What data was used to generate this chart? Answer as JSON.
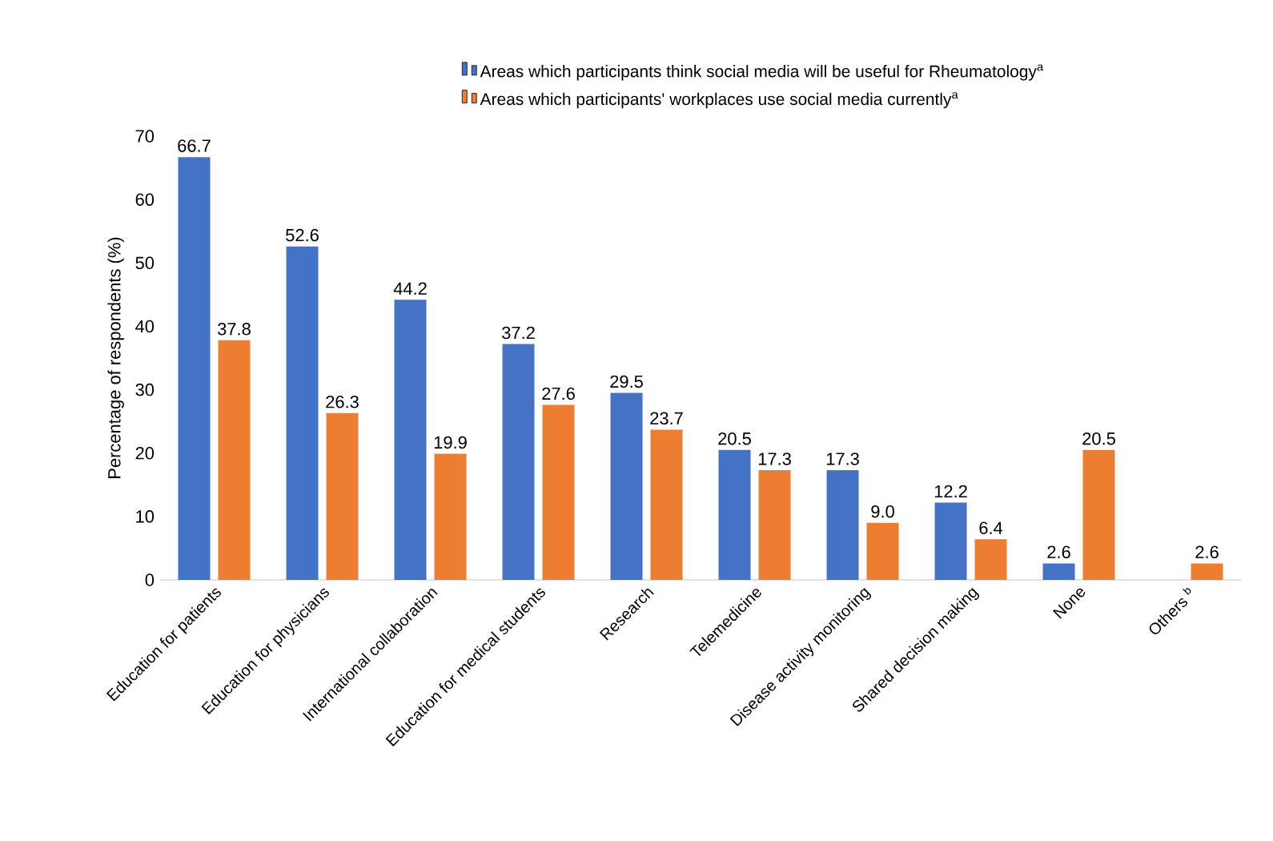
{
  "chart_data": {
    "type": "bar",
    "categories": [
      "Education for patients",
      "Education for physicians",
      "International collaboration",
      "Education for medical students",
      "Research",
      "Telemedicine",
      "Disease activity monitoring",
      "Shared decision making",
      "None",
      "Others $^{b}$"
    ],
    "ylabel": "Percentage of respondents (%)",
    "ylim": [
      0,
      70
    ],
    "yticks": [
      0,
      10,
      20,
      30,
      40,
      50,
      60,
      70
    ],
    "legend": "top",
    "series": [
      {
        "name": "Areas which participants think social media will be useful for Rheumatology$^{a}$",
        "color": "#4472c4",
        "values": [
          66.7,
          52.6,
          44.2,
          37.2,
          29.5,
          20.5,
          17.3,
          12.2,
          2.6,
          null
        ],
        "value_labels": [
          "66.7",
          "52.6",
          "44.2",
          "37.2",
          "29.5",
          "20.5",
          "17.3",
          "12.2",
          "2.6",
          null
        ]
      },
      {
        "name": "Areas which participants' workplaces use social media currently$^{a}$",
        "color": "#ed7d31",
        "values": [
          37.8,
          26.3,
          19.9,
          27.6,
          23.7,
          17.3,
          9.0,
          6.4,
          20.5,
          2.6
        ],
        "value_labels": [
          "37.8",
          "26.3",
          "19.9",
          "27.6",
          "23.7",
          "17.3",
          "9.0",
          "6.4",
          "20.5",
          "2.6"
        ]
      }
    ]
  }
}
